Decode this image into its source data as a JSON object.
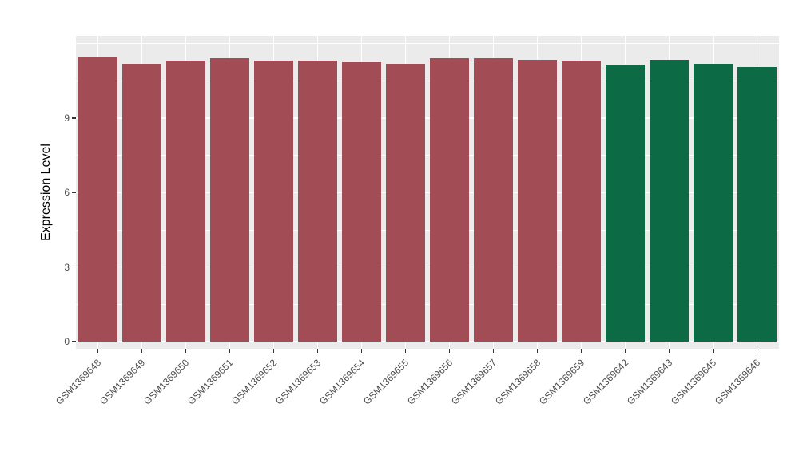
{
  "chart_data": {
    "type": "bar",
    "title": "",
    "xlabel": "",
    "ylabel": "Expression Level",
    "categories": [
      "GSM1369648",
      "GSM1369649",
      "GSM1369650",
      "GSM1369651",
      "GSM1369652",
      "GSM1369653",
      "GSM1369654",
      "GSM1369655",
      "GSM1369656",
      "GSM1369657",
      "GSM1369658",
      "GSM1369659",
      "GSM1369642",
      "GSM1369643",
      "GSM1369645",
      "GSM1369646"
    ],
    "values": [
      11.45,
      11.2,
      11.3,
      11.4,
      11.3,
      11.3,
      11.25,
      11.2,
      11.4,
      11.4,
      11.35,
      11.3,
      11.15,
      11.35,
      11.2,
      11.05
    ],
    "colors": [
      "#A24D55",
      "#A24D55",
      "#A24D55",
      "#A24D55",
      "#A24D55",
      "#A24D55",
      "#A24D55",
      "#A24D55",
      "#A24D55",
      "#A24D55",
      "#A24D55",
      "#A24D55",
      "#0C6B45",
      "#0C6B45",
      "#0C6B45",
      "#0C6B45"
    ],
    "group_colors": {
      "group1": "#A24D55",
      "group2": "#0C6B45"
    },
    "yticks": [
      0,
      3,
      6,
      9
    ],
    "major_breaks": [
      0,
      3,
      6,
      9,
      12
    ],
    "minor_breaks": [
      1.5,
      4.5,
      7.5,
      10.5
    ],
    "ylim": [
      -0.29,
      12.31
    ],
    "bar_width_fraction": 0.9,
    "panel_bg": "#EBEBEB",
    "grid_color": "#FFFFFF",
    "axis_text_color": "#4D4D4D",
    "tick_mark_color": "#333333",
    "legend_position": "none",
    "grid": true
  }
}
